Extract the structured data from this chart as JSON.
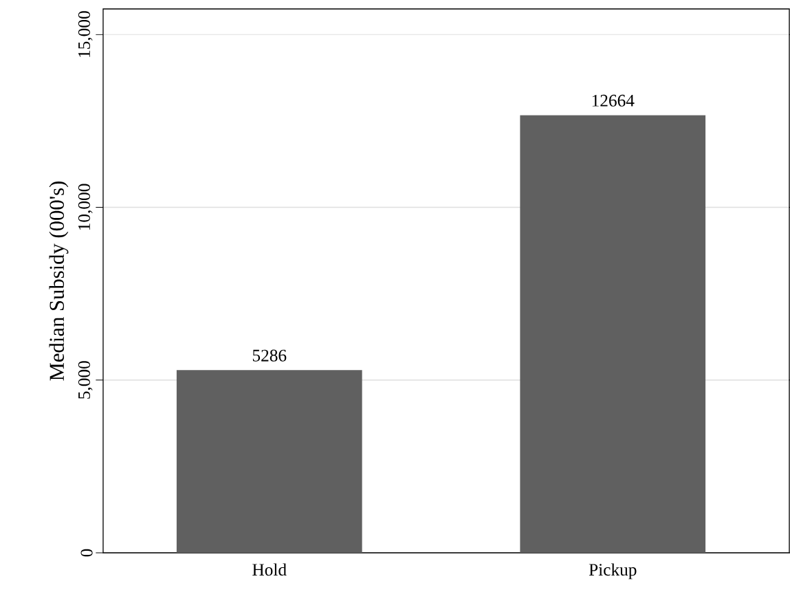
{
  "chart_data": {
    "type": "bar",
    "ylabel": "Median Subsidy (000's)",
    "categories": [
      "Hold",
      "Pickup"
    ],
    "values": [
      5286,
      12664
    ],
    "color": "#606060",
    "ylim": [
      0,
      15740
    ],
    "yticks": [
      0,
      {
        "value": 5000,
        "label": "5,000"
      },
      {
        "value": 10000,
        "label": "10,000"
      },
      {
        "value": 15000,
        "label": "15,000"
      }
    ],
    "grid": "y",
    "data_labels": true
  }
}
